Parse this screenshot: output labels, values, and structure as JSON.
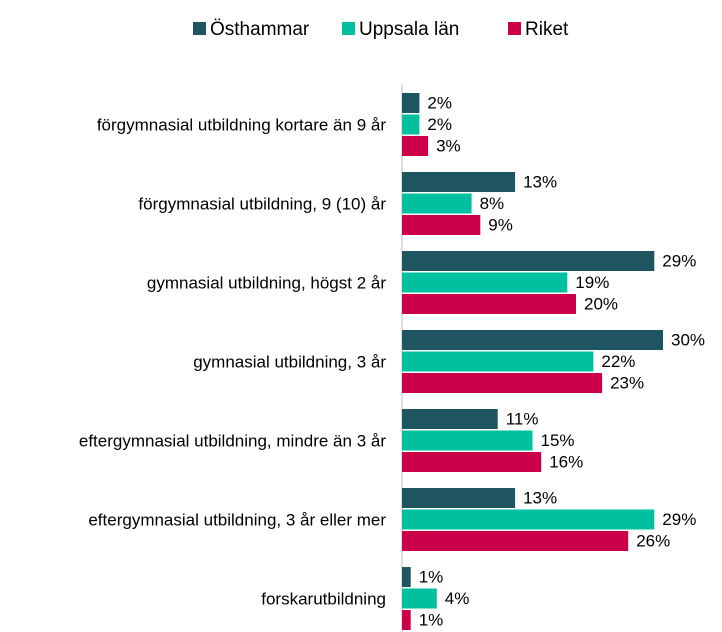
{
  "chart_data": {
    "type": "bar",
    "orientation": "horizontal",
    "categories": [
      "förgymnasial utbildning kortare än 9 år",
      "förgymnasial utbildning, 9 (10) år",
      "gymnasial utbildning, högst 2 år",
      "gymnasial utbildning, 3 år",
      "eftergymnasial utbildning, mindre än 3 år",
      "eftergymnasial utbildning, 3 år eller mer",
      "forskarutbildning"
    ],
    "series": [
      {
        "name": "Östhammar",
        "color": "#1f5560",
        "values": [
          2,
          13,
          29,
          30,
          11,
          13,
          1
        ],
        "value_labels": [
          "2%",
          "13%",
          "29%",
          "30%",
          "11%",
          "13%",
          "1%"
        ]
      },
      {
        "name": "Uppsala län",
        "color": "#00c0a0",
        "values": [
          2,
          8,
          19,
          22,
          15,
          29,
          4
        ],
        "value_labels": [
          "2%",
          "8%",
          "19%",
          "22%",
          "15%",
          "29%",
          "4%"
        ]
      },
      {
        "name": "Riket",
        "color": "#cc0049",
        "values": [
          3,
          9,
          20,
          23,
          16,
          26,
          1
        ],
        "value_labels": [
          "3%",
          "9%",
          "20%",
          "23%",
          "16%",
          "26%",
          "1%"
        ]
      }
    ],
    "xlim": [
      0,
      30
    ],
    "legend": "top"
  }
}
